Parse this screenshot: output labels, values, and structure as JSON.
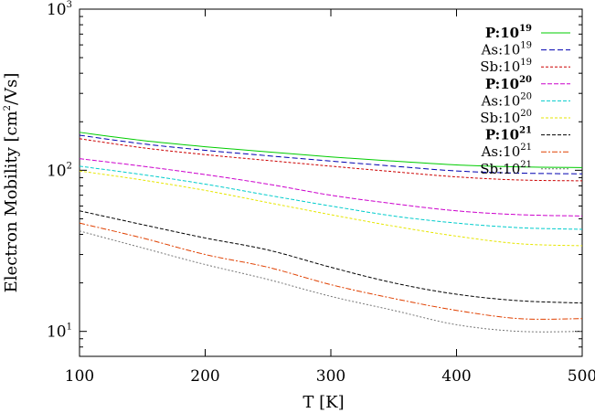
{
  "chart_data": {
    "type": "line",
    "xlabel": "T [K]",
    "ylabel": "Electron Mobility [cm2/Vs]",
    "ylabel_parts": {
      "main": "Electron Mobility [cm",
      "sup": "2",
      "tail": "/Vs]"
    },
    "xlim": [
      100,
      500
    ],
    "ylim": [
      7,
      1000
    ],
    "yscale": "log",
    "xticks": [
      100,
      200,
      300,
      400,
      500
    ],
    "yticks": [
      {
        "value": 10,
        "base": "10",
        "exp": "1"
      },
      {
        "value": 100,
        "base": "10",
        "exp": "2"
      },
      {
        "value": 1000,
        "base": "10",
        "exp": "3"
      }
    ],
    "grid": false,
    "legend_position": "top-right",
    "x": [
      100,
      150,
      200,
      250,
      300,
      350,
      400,
      450,
      500
    ],
    "series": [
      {
        "name": "P:10^19",
        "label_base": "P:10",
        "label_exp": "19",
        "bold": true,
        "color": "#00cc00",
        "dash": "",
        "values": [
          172,
          153,
          140,
          130,
          121,
          114,
          108,
          105,
          104
        ]
      },
      {
        "name": "As:10^19",
        "label_base": "As:10",
        "label_exp": "19",
        "bold": false,
        "color": "#0000b0",
        "dash": "6,3",
        "values": [
          165,
          146,
          133,
          123,
          114,
          106,
          99,
          96,
          95
        ]
      },
      {
        "name": "Sb:10^19",
        "label_base": "Sb:10",
        "label_exp": "19",
        "bold": false,
        "color": "#cc0000",
        "dash": "3,2",
        "values": [
          157,
          138,
          125,
          115,
          106,
          98,
          91,
          87,
          86
        ]
      },
      {
        "name": "P:10^20",
        "label_base": "P:10",
        "label_exp": "20",
        "bold": true,
        "color": "#cc00cc",
        "dash": "5,2",
        "values": [
          118,
          106,
          94,
          82,
          70,
          62,
          56,
          53,
          52
        ]
      },
      {
        "name": "As:10^20",
        "label_base": "As:10",
        "label_exp": "20",
        "bold": false,
        "color": "#00cccc",
        "dash": "4,2",
        "values": [
          106,
          94,
          82,
          70,
          60,
          52,
          47,
          44,
          43
        ]
      },
      {
        "name": "Sb:10^20",
        "label_base": "Sb:10",
        "label_exp": "20",
        "bold": false,
        "color": "#e6e600",
        "dash": "3,2",
        "values": [
          99,
          87,
          75,
          63,
          53,
          45,
          39,
          35,
          34
        ]
      },
      {
        "name": "P:10^21",
        "label_base": "P:10",
        "label_exp": "21",
        "bold": true,
        "color": "#000000",
        "dash": "4,2",
        "values": [
          56,
          46,
          38,
          32,
          25,
          20,
          17,
          15.5,
          15
        ]
      },
      {
        "name": "As:10^21",
        "label_base": "As:10",
        "label_exp": "21",
        "bold": false,
        "color": "#e04000",
        "dash": "6,2,2,2",
        "values": [
          47,
          38,
          30,
          25,
          19.5,
          16,
          13.5,
          12,
          12
        ]
      },
      {
        "name": "Sb:10^21",
        "label_base": "Sb:10",
        "label_exp": "21",
        "bold": false,
        "color": "#777777",
        "dash": "2,2",
        "values": [
          42,
          33,
          26,
          21,
          16.5,
          13.5,
          11,
          10,
          10
        ]
      }
    ]
  }
}
